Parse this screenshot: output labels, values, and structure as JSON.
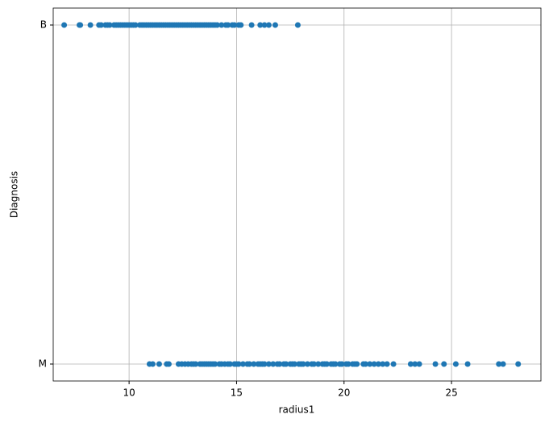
{
  "chart_data": {
    "type": "scatter",
    "x_label": "radius1",
    "y_label": "Diagnosis",
    "categories": [
      "M",
      "B"
    ],
    "x": [
      [
        10.95,
        11.1,
        11.4,
        11.75,
        11.85,
        12.3,
        12.45,
        12.6,
        12.75,
        12.9,
        13.0,
        13.1,
        13.3,
        13.4,
        13.5,
        13.6,
        13.7,
        13.8,
        13.9,
        14.0,
        14.2,
        14.3,
        14.45,
        14.6,
        14.7,
        14.9,
        15.0,
        15.1,
        15.3,
        15.5,
        15.6,
        15.8,
        16.0,
        16.1,
        16.2,
        16.3,
        16.5,
        16.7,
        16.9,
        17.0,
        17.2,
        17.3,
        17.5,
        17.6,
        17.7,
        17.9,
        18.0,
        18.1,
        18.3,
        18.5,
        18.6,
        18.8,
        19.0,
        19.1,
        19.2,
        19.4,
        19.5,
        19.6,
        19.8,
        19.9,
        20.1,
        20.2,
        20.4,
        20.5,
        20.6,
        20.9,
        21.0,
        21.2,
        21.4,
        21.6,
        21.8,
        22.0,
        22.3,
        23.1,
        23.3,
        23.5,
        24.25,
        24.65,
        25.2,
        25.75,
        27.2,
        27.4,
        28.1
      ],
      [
        6.98,
        7.69,
        7.73,
        8.2,
        8.6,
        8.7,
        8.9,
        9.0,
        9.1,
        9.3,
        9.4,
        9.5,
        9.6,
        9.7,
        9.8,
        9.9,
        10.0,
        10.1,
        10.2,
        10.3,
        10.5,
        10.6,
        10.7,
        10.8,
        10.9,
        11.0,
        11.1,
        11.2,
        11.3,
        11.4,
        11.5,
        11.6,
        11.7,
        11.8,
        11.9,
        12.0,
        12.1,
        12.2,
        12.3,
        12.4,
        12.5,
        12.6,
        12.7,
        12.8,
        12.9,
        13.0,
        13.1,
        13.2,
        13.3,
        13.4,
        13.5,
        13.6,
        13.7,
        13.8,
        13.9,
        14.0,
        14.1,
        14.3,
        14.5,
        14.6,
        14.8,
        14.9,
        15.1,
        15.2,
        15.7,
        16.1,
        16.3,
        16.5,
        16.8,
        17.85
      ]
    ],
    "color": "#1f77b4",
    "xlim": [
      6.47,
      29.16
    ],
    "xticks": [
      10,
      15,
      20,
      25
    ],
    "grid": true
  }
}
